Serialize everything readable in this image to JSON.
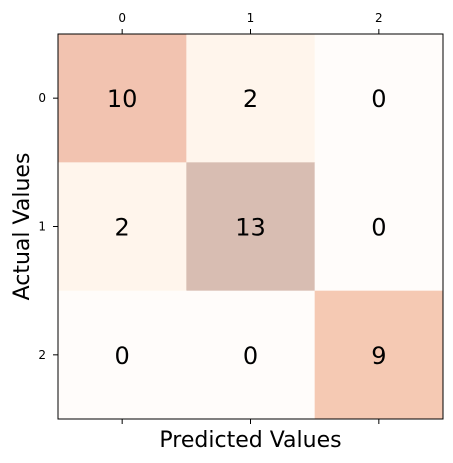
{
  "chart_data": {
    "type": "heatmap",
    "title": "",
    "xlabel": "Predicted Values",
    "ylabel": "Actual Values",
    "x_categories": [
      "0",
      "1",
      "2"
    ],
    "y_categories": [
      "0",
      "1",
      "2"
    ],
    "x_tick_position": "top",
    "values": [
      [
        10,
        2,
        0
      ],
      [
        2,
        13,
        0
      ],
      [
        0,
        0,
        9
      ]
    ],
    "value_labels": [
      [
        "10",
        "2",
        "0"
      ],
      [
        "2",
        "13",
        "0"
      ],
      [
        "0",
        "0",
        "9"
      ]
    ],
    "cell_colors": [
      [
        "#f2c3b0",
        "#fff5ec",
        "#fffcfa"
      ],
      [
        "#fff5ec",
        "#d8bdb2",
        "#fffcfa"
      ],
      [
        "#fffcfa",
        "#fffcfa",
        "#f5c9b3"
      ]
    ],
    "grid": false
  }
}
